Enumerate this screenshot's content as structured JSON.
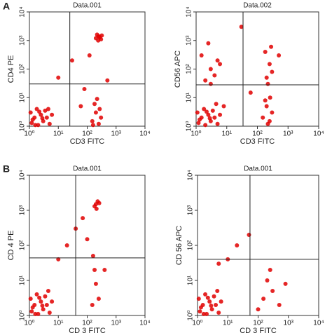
{
  "panel_labels": [
    "A",
    "B"
  ],
  "chart_data": [
    {
      "type": "scatter",
      "title": "Data.001",
      "xlabel": "CD3 FITC",
      "ylabel": "CD4 PE",
      "xscale": "log",
      "yscale": "log",
      "color": "#e00000",
      "xlim": [
        1,
        10000
      ],
      "ylim": [
        1,
        10000
      ],
      "xticks": [
        {
          "value": 1,
          "label": "10⁰"
        },
        {
          "value": 10,
          "label": "10¹"
        },
        {
          "value": 100,
          "label": "10²"
        },
        {
          "value": 1000,
          "label": "10³"
        },
        {
          "value": 10000,
          "label": "10⁴"
        }
      ],
      "yticks": [
        {
          "value": 1,
          "label": "10⁰"
        },
        {
          "value": 10,
          "label": "10¹"
        },
        {
          "value": 100,
          "label": "10²"
        },
        {
          "value": 1000,
          "label": "10³"
        },
        {
          "value": 10000,
          "label": "10⁴"
        }
      ],
      "quadrant_x": 25,
      "quadrant_y": 30,
      "x": [
        1.2,
        1.5,
        2,
        2.5,
        3,
        1.1,
        4,
        1.8,
        3.5,
        5,
        1.3,
        2.2,
        6,
        1.6,
        2.8,
        4.5,
        200,
        250,
        300,
        220,
        270,
        320,
        240,
        150,
        200,
        250,
        180,
        300,
        220,
        160,
        270,
        30,
        10,
        80,
        500,
        120,
        60
      ],
      "y": [
        1.3,
        2,
        1.1,
        2.5,
        1.5,
        3,
        2,
        4,
        3.5,
        1.2,
        1.7,
        3.2,
        2.5,
        1.1,
        1.9,
        4,
        1200,
        1400,
        1100,
        1600,
        1300,
        1500,
        1000,
        1.5,
        3,
        1.2,
        6,
        2,
        9,
        1.1,
        4,
        200,
        50,
        20,
        40,
        300,
        5
      ]
    },
    {
      "type": "scatter",
      "title": "Data.002",
      "xlabel": "CD3 FITC",
      "ylabel": "CD56 APC",
      "xscale": "log",
      "yscale": "log",
      "color": "#e00000",
      "xlim": [
        1,
        10000
      ],
      "ylim": [
        1,
        10000
      ],
      "xticks": [
        {
          "value": 1,
          "label": "10⁰"
        },
        {
          "value": 10,
          "label": "10¹"
        },
        {
          "value": 100,
          "label": "10²"
        },
        {
          "value": 1000,
          "label": "10³"
        },
        {
          "value": 10000,
          "label": "10⁴"
        }
      ],
      "yticks": [
        {
          "value": 1,
          "label": "10⁰"
        },
        {
          "value": 10,
          "label": "10¹"
        },
        {
          "value": 100,
          "label": "10²"
        },
        {
          "value": 1000,
          "label": "10³"
        },
        {
          "value": 10000,
          "label": "10⁴"
        }
      ],
      "quadrant_x": 34,
      "quadrant_y": 28,
      "x": [
        1.2,
        1.5,
        2,
        2.5,
        3,
        1.1,
        4,
        1.8,
        3.5,
        5,
        1.3,
        2.2,
        6,
        8,
        2.8,
        4.5,
        2,
        3,
        1.5,
        4,
        2.5,
        5,
        3,
        6,
        150,
        200,
        250,
        180,
        300,
        220,
        260,
        200,
        250,
        180,
        300,
        220,
        280,
        30,
        500,
        60
      ],
      "y": [
        1.3,
        2,
        1.1,
        2.5,
        1.5,
        3,
        2,
        4,
        3.5,
        1.2,
        1.7,
        3.2,
        2.5,
        5,
        1.9,
        6,
        40,
        100,
        300,
        60,
        800,
        200,
        30,
        150,
        2,
        5,
        1.5,
        8,
        3,
        1.2,
        10,
        50,
        150,
        400,
        80,
        30,
        600,
        3000,
        300,
        15
      ]
    },
    {
      "type": "scatter",
      "title": "Data.001",
      "xlabel": "CD 3 FITC",
      "ylabel": "CD 4 PE",
      "xscale": "log",
      "yscale": "log",
      "color": "#e00000",
      "xlim": [
        1,
        10000
      ],
      "ylim": [
        1,
        10000
      ],
      "xticks": [
        {
          "value": 1,
          "label": "10⁰"
        },
        {
          "value": 10,
          "label": "10¹"
        },
        {
          "value": 100,
          "label": "10²"
        },
        {
          "value": 1000,
          "label": "10³"
        },
        {
          "value": 10000,
          "label": "10⁴"
        }
      ],
      "yticks": [
        {
          "value": 1,
          "label": "10⁰"
        },
        {
          "value": 10,
          "label": "10¹"
        },
        {
          "value": 100,
          "label": "10²"
        },
        {
          "value": 1000,
          "label": "10³"
        },
        {
          "value": 10000,
          "label": "10⁴"
        }
      ],
      "quadrant_x": 40,
      "quadrant_y": 44,
      "x": [
        1.2,
        1.5,
        2,
        2.5,
        3,
        1.1,
        4,
        1.8,
        3.5,
        5,
        1.3,
        2.2,
        6,
        1.6,
        2.8,
        4.5,
        200,
        230,
        180,
        260,
        210,
        150,
        200,
        180,
        250,
        160,
        20,
        40,
        70,
        10,
        100,
        400
      ],
      "y": [
        1.3,
        2,
        1.1,
        2.5,
        1.5,
        3,
        2,
        4,
        3.5,
        1.2,
        1.7,
        3.2,
        2.5,
        1.1,
        1.9,
        5,
        1500,
        1800,
        1300,
        1600,
        1100,
        2,
        8,
        20,
        3,
        50,
        100,
        300,
        600,
        40,
        150,
        20
      ]
    },
    {
      "type": "scatter",
      "title": "Data.001",
      "xlabel": "CD 3 FITC",
      "ylabel": "CD 56 APC",
      "xscale": "log",
      "yscale": "log",
      "color": "#e00000",
      "xlim": [
        1,
        10000
      ],
      "ylim": [
        1,
        10000
      ],
      "xticks": [
        {
          "value": 1,
          "label": "10⁰"
        },
        {
          "value": 10,
          "label": "10¹"
        },
        {
          "value": 100,
          "label": "10²"
        },
        {
          "value": 1000,
          "label": "10³"
        },
        {
          "value": 10000,
          "label": "10⁴"
        }
      ],
      "yticks": [
        {
          "value": 1,
          "label": "10⁰"
        },
        {
          "value": 10,
          "label": "10¹"
        },
        {
          "value": 100,
          "label": "10²"
        },
        {
          "value": 1000,
          "label": "10³"
        },
        {
          "value": 10000,
          "label": "10⁴"
        }
      ],
      "quadrant_x": 54,
      "quadrant_y": 40,
      "x": [
        1.2,
        1.5,
        2,
        2.5,
        3,
        1.1,
        4,
        1.8,
        3.5,
        5,
        1.3,
        2.2,
        6,
        1.6,
        2.8,
        4.5,
        150,
        200,
        300,
        500,
        100,
        250,
        20,
        10,
        50,
        5,
        800
      ],
      "y": [
        1.3,
        2,
        1.1,
        2.5,
        1.5,
        3,
        2,
        4,
        3.5,
        1.2,
        1.7,
        3.2,
        2.5,
        1.1,
        1.9,
        5,
        3,
        10,
        5,
        2,
        1.5,
        20,
        100,
        40,
        200,
        30,
        8
      ]
    }
  ]
}
